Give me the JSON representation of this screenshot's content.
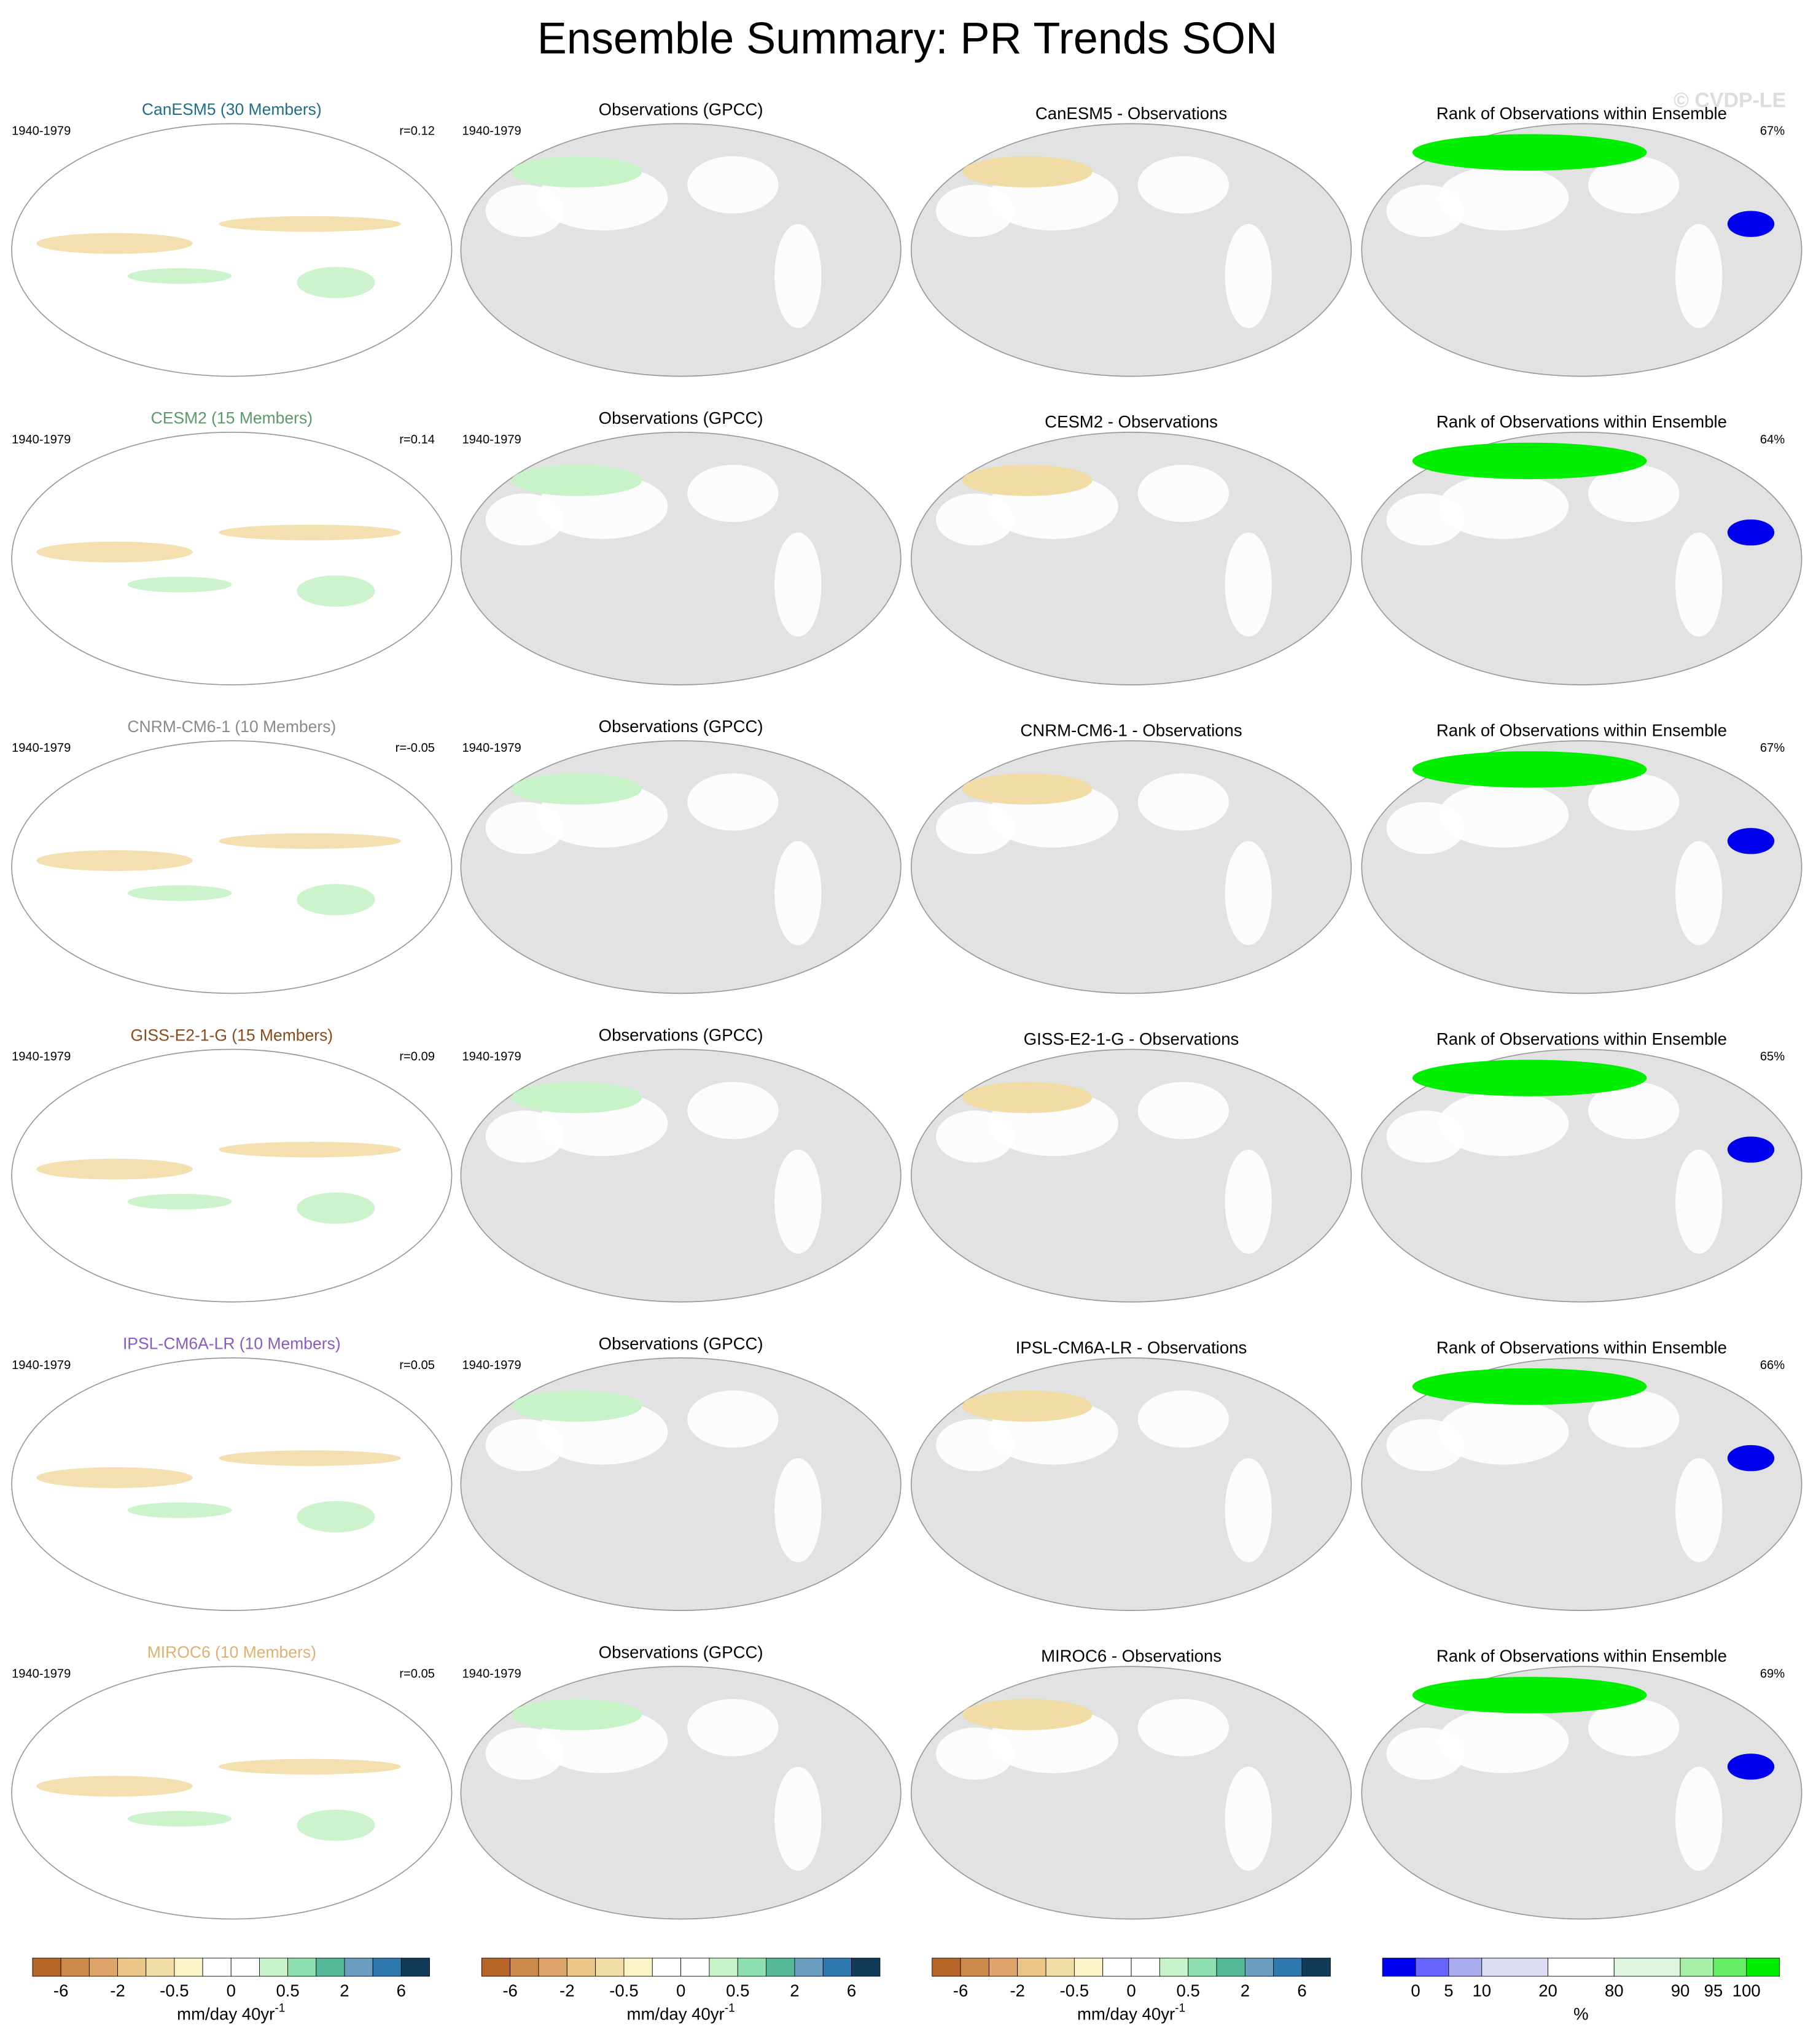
{
  "header": {
    "title": "Ensemble Summary: PR Trends SON",
    "watermark": "© CVDP-LE"
  },
  "rows": [
    {
      "model_title": "CanESM5 (30 Members)",
      "color": "#1f6f8b",
      "period": "1940-1979",
      "r": "r=0.12",
      "obs_period": "1940-1979",
      "obs_title": "Observations (GPCC)",
      "diff_title": "CanESM5 - Observations",
      "rank_title": "Rank of Observations within Ensemble",
      "rank_pct": "67%"
    },
    {
      "model_title": "CESM2 (15 Members)",
      "color": "#5a9a6a",
      "period": "1940-1979",
      "r": "r=0.14",
      "obs_period": "1940-1979",
      "obs_title": "Observations (GPCC)",
      "diff_title": "CESM2 - Observations",
      "rank_title": "Rank of Observations within Ensemble",
      "rank_pct": "64%"
    },
    {
      "model_title": "CNRM-CM6-1 (10 Members)",
      "color": "#8a8a8a",
      "period": "1940-1979",
      "r": "r=-0.05",
      "obs_period": "1940-1979",
      "obs_title": "Observations (GPCC)",
      "diff_title": "CNRM-CM6-1 - Observations",
      "rank_title": "Rank of Observations within Ensemble",
      "rank_pct": "67%"
    },
    {
      "model_title": "GISS-E2-1-G (15 Members)",
      "color": "#8b4a1a",
      "period": "1940-1979",
      "r": "r=0.09",
      "obs_period": "1940-1979",
      "obs_title": "Observations (GPCC)",
      "diff_title": "GISS-E2-1-G - Observations",
      "rank_title": "Rank of Observations within Ensemble",
      "rank_pct": "65%"
    },
    {
      "model_title": "IPSL-CM6A-LR (10 Members)",
      "color": "#8a5ac8",
      "period": "1940-1979",
      "r": "r=0.05",
      "obs_period": "1940-1979",
      "obs_title": "Observations (GPCC)",
      "diff_title": "IPSL-CM6A-LR - Observations",
      "rank_title": "Rank of Observations within Ensemble",
      "rank_pct": "66%"
    },
    {
      "model_title": "MIROC6 (10 Members)",
      "color": "#e0b070",
      "period": "1940-1979",
      "r": "r=0.05",
      "obs_period": "1940-1979",
      "obs_title": "Observations (GPCC)",
      "diff_title": "MIROC6 - Observations",
      "rank_title": "Rank of Observations within Ensemble",
      "rank_pct": "69%"
    }
  ],
  "trend_colorbar": {
    "colors": [
      "#b8652a",
      "#cc8a4a",
      "#dea56a",
      "#ebc488",
      "#f2dca6",
      "#fbf2c8",
      "#ffffff",
      "#ffffff",
      "#c8f2c8",
      "#8ee0b0",
      "#55b898",
      "#6b9ec0",
      "#2e78b0",
      "#103a58"
    ],
    "labels": [
      "-6",
      "-2",
      "-0.5",
      "0",
      "0.5",
      "2",
      "6"
    ],
    "unit": "mm/day 40yr",
    "unit_exp": "-1"
  },
  "rank_colorbar": {
    "colors": [
      "#0000ee",
      "#6666ff",
      "#aaaaee",
      "#dcdcf5",
      "#ffffff",
      "#dcf5dc",
      "#a8f0a8",
      "#66ee66",
      "#00ee00"
    ],
    "labels": [
      "0",
      "5",
      "10",
      "20",
      "80",
      "90",
      "95",
      "100"
    ],
    "unit": "%"
  }
}
